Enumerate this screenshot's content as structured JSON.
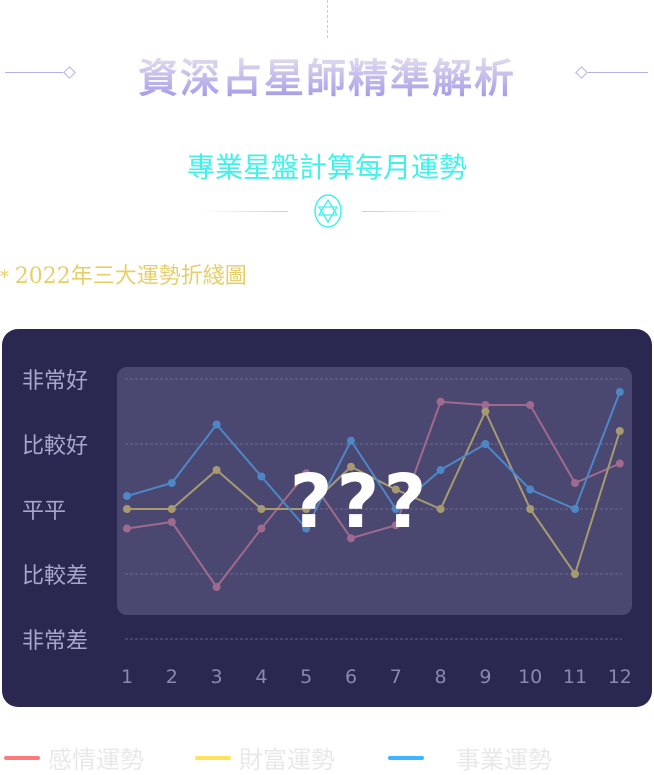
{
  "header": {
    "title": "資深占星師精準解析",
    "subtitle": "專業星盤計算每月運勢",
    "section_title": "2022年三大運勢折綫圖"
  },
  "chart_data": {
    "type": "line",
    "title": "2022年三大運勢折綫圖",
    "categories": [
      "1",
      "2",
      "3",
      "4",
      "5",
      "6",
      "7",
      "8",
      "9",
      "10",
      "11",
      "12"
    ],
    "y_levels": [
      "非常差",
      "比較差",
      "平平",
      "比較好",
      "非常好"
    ],
    "ylim": [
      1,
      5
    ],
    "grid": true,
    "legend_position": "bottom",
    "overlay_text": "???",
    "series": [
      {
        "name": "感情運勢",
        "color": "#a06a8e",
        "legend_color": "#ff7a7a",
        "values": [
          2.7,
          2.8,
          1.8,
          2.7,
          3.55,
          2.55,
          2.75,
          4.65,
          4.6,
          4.6,
          3.4,
          3.7
        ]
      },
      {
        "name": "財富運勢",
        "color": "#a89a70",
        "legend_color": "#ffe25a",
        "values": [
          3,
          3,
          3.6,
          3,
          3,
          3.65,
          3.3,
          3,
          4.5,
          3,
          2,
          4.2
        ]
      },
      {
        "name": "事業運勢",
        "color": "#4f86c6",
        "legend_color": "#3fb4ff",
        "values": [
          3.2,
          3.4,
          4.3,
          3.5,
          2.7,
          4.05,
          3.0,
          3.6,
          4.0,
          3.3,
          3.0,
          4.8
        ]
      }
    ]
  }
}
